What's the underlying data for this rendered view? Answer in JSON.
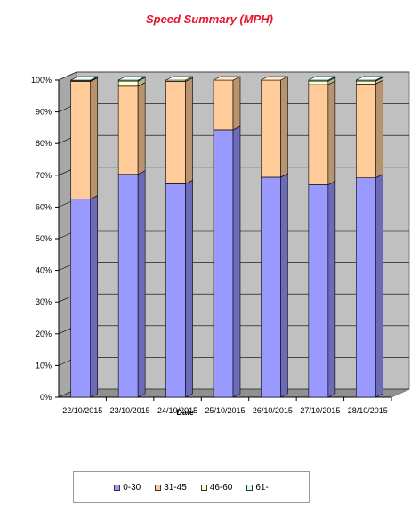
{
  "chart_data": {
    "type": "bar",
    "stacked": true,
    "percent": true,
    "title": "Speed Summary (MPH)",
    "xlabel": "Date",
    "ylabel": "",
    "ylim": [
      0,
      100
    ],
    "yticks": [
      "0%",
      "10%",
      "20%",
      "30%",
      "40%",
      "50%",
      "60%",
      "70%",
      "80%",
      "90%",
      "100%"
    ],
    "categories": [
      "22/10/2015",
      "23/10/2015",
      "24/10/2015",
      "25/10/2015",
      "26/10/2015",
      "27/10/2015",
      "28/10/2015"
    ],
    "series": [
      {
        "name": "0-30",
        "color": "#9999ff",
        "sideColor": "#6b6bb8",
        "topColor": "#ccccff",
        "values": [
          62.5,
          70.3,
          67.3,
          84.3,
          69.4,
          67.0,
          69.2
        ]
      },
      {
        "name": "31-45",
        "color": "#ffcc99",
        "sideColor": "#b8936e",
        "topColor": "#ffe8cc",
        "values": [
          37.1,
          27.8,
          32.3,
          15.7,
          30.6,
          31.6,
          29.6
        ]
      },
      {
        "name": "46-60",
        "color": "#ffffcc",
        "sideColor": "#b8b88f",
        "topColor": "#ffffee",
        "values": [
          0.3,
          1.6,
          0.4,
          0.0,
          0.0,
          1.1,
          0.9
        ]
      },
      {
        "name": "61-",
        "color": "#ccffff",
        "sideColor": "#8fb8b8",
        "topColor": "#e8ffff",
        "values": [
          0.1,
          0.3,
          0.0,
          0.0,
          0.0,
          0.3,
          0.3
        ]
      }
    ],
    "grid": true,
    "legend_position": "bottom",
    "style": "3d-stacked-column",
    "plot_background": "#c0c0c0"
  }
}
